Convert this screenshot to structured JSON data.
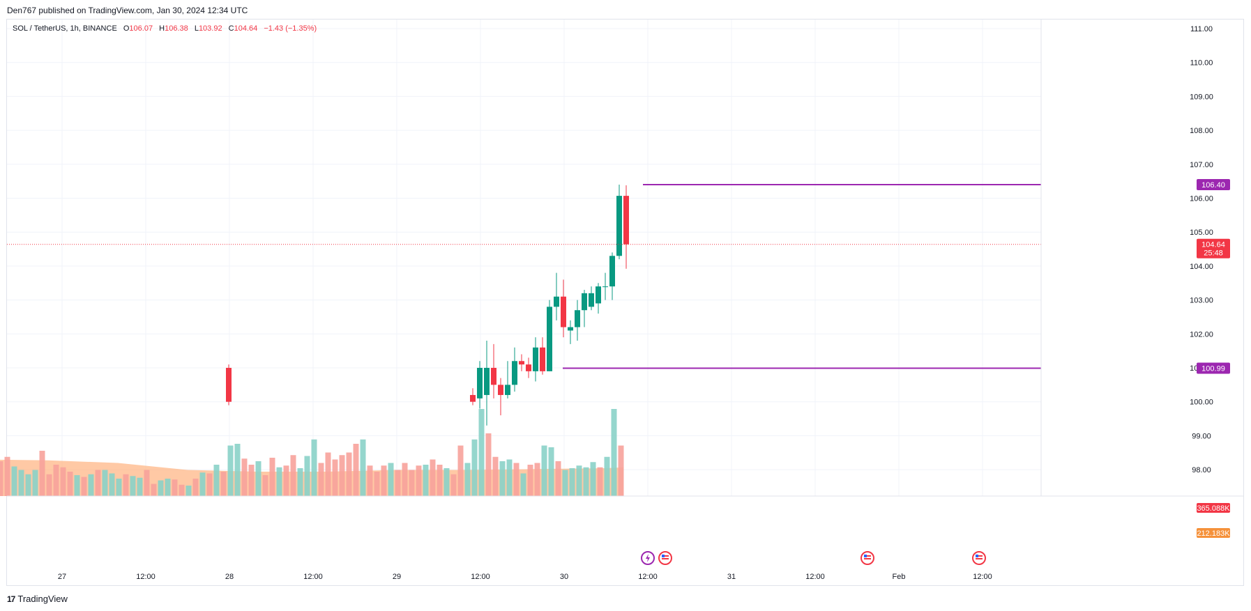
{
  "header": {
    "published": "Den767 published on TradingView.com, Jan 30, 2024 12:34 UTC"
  },
  "legend": {
    "symbol": "SOL / TetherUS, 1h, BINANCE",
    "open_label": "O",
    "open": "106.07",
    "high_label": "H",
    "high": "106.38",
    "low_label": "L",
    "low": "103.92",
    "close_label": "C",
    "close": "104.64",
    "change": "−1.43 (−1.35%)"
  },
  "footer": {
    "brand": "TradingView",
    "logo_icon": "tradingview-logo-icon"
  },
  "colors": {
    "up": "#089981",
    "down": "#f23645",
    "level": "#9c27b0",
    "vol_ma": "#ffb787",
    "vol_up": "#8ad2c8",
    "vol_down": "#f7a29b",
    "price_line": "#f23645"
  },
  "chart_data": {
    "type": "candlestick",
    "y_ticks": [
      "111.00",
      "110.00",
      "109.00",
      "108.00",
      "107.00",
      "106.00",
      "105.00",
      "104.00",
      "103.00",
      "102.00",
      "101.00",
      "100.00",
      "99.00",
      "98.00"
    ],
    "y_tick_values": [
      111,
      110,
      109,
      108,
      107,
      106,
      105,
      104,
      103,
      102,
      101,
      100,
      99,
      98
    ],
    "ylim": [
      97.7,
      111.4
    ],
    "x_ticks": [
      "27",
      "12:00",
      "28",
      "12:00",
      "29",
      "12:00",
      "30",
      "12:00",
      "31",
      "12:00",
      "Feb",
      "12:00"
    ],
    "x_tick_hours": [
      12,
      24,
      36,
      48,
      60,
      72,
      84,
      96,
      108,
      120,
      132,
      144
    ],
    "levels": [
      {
        "label": "106.40",
        "value": 106.4,
        "from_hour": 95.5
      },
      {
        "label": "100.99",
        "value": 100.99,
        "from_hour": 84.0
      }
    ],
    "last_price": {
      "label": "104.64",
      "countdown": "25:48",
      "value": 104.64
    },
    "volume_labels": [
      {
        "label": "365.088K",
        "color": "#f23645"
      },
      {
        "label": "212.183K",
        "color": "#f5913a"
      }
    ],
    "candles": [
      {
        "h": 70.9,
        "o": 100.2,
        "c": 100.0,
        "hi": 100.4,
        "lo": 99.9
      },
      {
        "h": 71.9,
        "o": 100.1,
        "c": 101.0,
        "hi": 101.2,
        "lo": 99.8
      },
      {
        "h": 72.9,
        "o": 100.2,
        "c": 101.0,
        "hi": 101.8,
        "lo": 99.3
      },
      {
        "h": 73.9,
        "o": 101.0,
        "c": 100.5,
        "hi": 101.7,
        "lo": 100.1
      },
      {
        "h": 74.9,
        "o": 100.5,
        "c": 100.2,
        "hi": 100.7,
        "lo": 99.6
      },
      {
        "h": 75.9,
        "o": 100.2,
        "c": 100.5,
        "hi": 101.2,
        "lo": 100.1
      },
      {
        "h": 76.9,
        "o": 100.5,
        "c": 101.2,
        "hi": 101.6,
        "lo": 100.3
      },
      {
        "h": 77.9,
        "o": 101.2,
        "c": 101.1,
        "hi": 101.4,
        "lo": 100.9
      },
      {
        "h": 78.9,
        "o": 101.1,
        "c": 100.9,
        "hi": 101.3,
        "lo": 100.7
      },
      {
        "h": 79.9,
        "o": 100.9,
        "c": 101.6,
        "hi": 101.9,
        "lo": 100.6
      },
      {
        "h": 80.9,
        "o": 101.6,
        "c": 100.9,
        "hi": 101.9,
        "lo": 100.8
      },
      {
        "h": 81.9,
        "o": 100.9,
        "c": 102.8,
        "hi": 103.0,
        "lo": 100.9
      },
      {
        "h": 82.9,
        "o": 102.8,
        "c": 103.1,
        "hi": 103.8,
        "lo": 102.4
      },
      {
        "h": 83.9,
        "o": 103.1,
        "c": 102.2,
        "hi": 103.6,
        "lo": 101.9
      },
      {
        "h": 84.9,
        "o": 102.1,
        "c": 102.2,
        "hi": 102.4,
        "lo": 101.7
      },
      {
        "h": 85.9,
        "o": 102.2,
        "c": 102.7,
        "hi": 103.0,
        "lo": 101.8
      },
      {
        "h": 86.9,
        "o": 102.7,
        "c": 103.2,
        "hi": 103.3,
        "lo": 102.2
      },
      {
        "h": 87.9,
        "o": 102.8,
        "c": 103.2,
        "hi": 103.4,
        "lo": 102.7
      },
      {
        "h": 88.9,
        "o": 102.9,
        "c": 103.4,
        "hi": 103.5,
        "lo": 102.6
      },
      {
        "h": 89.9,
        "o": 103.4,
        "c": 103.4,
        "hi": 103.8,
        "lo": 103.0
      },
      {
        "h": 90.9,
        "o": 103.4,
        "c": 104.3,
        "hi": 104.4,
        "lo": 103.0
      },
      {
        "h": 91.9,
        "o": 104.3,
        "c": 106.07,
        "hi": 106.4,
        "lo": 104.2
      },
      {
        "h": 92.9,
        "o": 106.07,
        "c": 104.64,
        "hi": 106.38,
        "lo": 103.92
      }
    ],
    "early_candles": [
      {
        "h": 35.9,
        "o": 101.0,
        "c": 100.0,
        "hi": 101.1,
        "lo": 99.9
      }
    ],
    "volumes": [
      {
        "h": 0.2,
        "v": 0.55,
        "d": 0
      },
      {
        "h": 1.2,
        "v": 0.4,
        "d": 1
      },
      {
        "h": 2.2,
        "v": 0.36,
        "d": 1
      },
      {
        "h": 3.2,
        "v": 0.4,
        "d": 1
      },
      {
        "h": 4.2,
        "v": 0.45,
        "d": 1
      },
      {
        "h": 5.2,
        "v": 0.34,
        "d": 0
      },
      {
        "h": 6.2,
        "v": 0.3,
        "d": 0
      },
      {
        "h": 7.2,
        "v": 0.25,
        "d": 0
      },
      {
        "h": 8.2,
        "v": 0.3,
        "d": 0
      },
      {
        "h": 9.2,
        "v": 0.52,
        "d": 1
      },
      {
        "h": 10.2,
        "v": 0.25,
        "d": 1
      },
      {
        "h": 11.2,
        "v": 0.36,
        "d": 1
      },
      {
        "h": 12.2,
        "v": 0.33,
        "d": 1
      },
      {
        "h": 13.2,
        "v": 0.28,
        "d": 1
      },
      {
        "h": 14.2,
        "v": 0.24,
        "d": 0
      },
      {
        "h": 15.2,
        "v": 0.22,
        "d": 1
      },
      {
        "h": 16.2,
        "v": 0.25,
        "d": 0
      },
      {
        "h": 17.2,
        "v": 0.3,
        "d": 1
      },
      {
        "h": 18.2,
        "v": 0.3,
        "d": 0
      },
      {
        "h": 19.2,
        "v": 0.26,
        "d": 0
      },
      {
        "h": 20.2,
        "v": 0.2,
        "d": 0
      },
      {
        "h": 21.2,
        "v": 0.25,
        "d": 1
      },
      {
        "h": 22.2,
        "v": 0.23,
        "d": 0
      },
      {
        "h": 23.2,
        "v": 0.21,
        "d": 0
      },
      {
        "h": 24.2,
        "v": 0.3,
        "d": 1
      },
      {
        "h": 25.2,
        "v": 0.14,
        "d": 1
      },
      {
        "h": 26.2,
        "v": 0.18,
        "d": 0
      },
      {
        "h": 27.2,
        "v": 0.2,
        "d": 0
      },
      {
        "h": 28.2,
        "v": 0.19,
        "d": 1
      },
      {
        "h": 29.2,
        "v": 0.13,
        "d": 1
      },
      {
        "h": 30.2,
        "v": 0.12,
        "d": 0
      },
      {
        "h": 31.2,
        "v": 0.2,
        "d": 1
      },
      {
        "h": 32.2,
        "v": 0.27,
        "d": 0
      },
      {
        "h": 33.2,
        "v": 0.26,
        "d": 1
      },
      {
        "h": 34.2,
        "v": 0.36,
        "d": 0
      },
      {
        "h": 35.2,
        "v": 0.28,
        "d": 1
      },
      {
        "h": 36.2,
        "v": 0.58,
        "d": 0
      },
      {
        "h": 37.2,
        "v": 0.6,
        "d": 0
      },
      {
        "h": 38.2,
        "v": 0.43,
        "d": 1
      },
      {
        "h": 39.2,
        "v": 0.36,
        "d": 1
      },
      {
        "h": 40.2,
        "v": 0.4,
        "d": 0
      },
      {
        "h": 41.2,
        "v": 0.24,
        "d": 1
      },
      {
        "h": 42.2,
        "v": 0.44,
        "d": 1
      },
      {
        "h": 43.2,
        "v": 0.33,
        "d": 0
      },
      {
        "h": 44.2,
        "v": 0.35,
        "d": 1
      },
      {
        "h": 45.2,
        "v": 0.47,
        "d": 1
      },
      {
        "h": 46.2,
        "v": 0.32,
        "d": 0
      },
      {
        "h": 47.2,
        "v": 0.46,
        "d": 0
      },
      {
        "h": 48.2,
        "v": 0.65,
        "d": 0
      },
      {
        "h": 49.2,
        "v": 0.38,
        "d": 1
      },
      {
        "h": 50.2,
        "v": 0.5,
        "d": 1
      },
      {
        "h": 51.2,
        "v": 0.42,
        "d": 1
      },
      {
        "h": 52.2,
        "v": 0.47,
        "d": 1
      },
      {
        "h": 53.2,
        "v": 0.5,
        "d": 1
      },
      {
        "h": 54.2,
        "v": 0.6,
        "d": 1
      },
      {
        "h": 55.2,
        "v": 0.65,
        "d": 0
      },
      {
        "h": 56.2,
        "v": 0.35,
        "d": 1
      },
      {
        "h": 57.2,
        "v": 0.28,
        "d": 1
      },
      {
        "h": 58.2,
        "v": 0.35,
        "d": 1
      },
      {
        "h": 59.2,
        "v": 0.38,
        "d": 0
      },
      {
        "h": 60.2,
        "v": 0.3,
        "d": 1
      },
      {
        "h": 61.2,
        "v": 0.38,
        "d": 1
      },
      {
        "h": 62.2,
        "v": 0.3,
        "d": 1
      },
      {
        "h": 63.2,
        "v": 0.35,
        "d": 1
      },
      {
        "h": 64.2,
        "v": 0.36,
        "d": 0
      },
      {
        "h": 65.2,
        "v": 0.42,
        "d": 1
      },
      {
        "h": 66.2,
        "v": 0.36,
        "d": 1
      },
      {
        "h": 67.2,
        "v": 0.32,
        "d": 0
      },
      {
        "h": 68.2,
        "v": 0.25,
        "d": 1
      },
      {
        "h": 69.2,
        "v": 0.58,
        "d": 1
      },
      {
        "h": 70.2,
        "v": 0.38,
        "d": 0
      },
      {
        "h": 71.2,
        "v": 0.65,
        "d": 0
      },
      {
        "h": 72.2,
        "v": 1.0,
        "d": 0
      },
      {
        "h": 73.2,
        "v": 0.72,
        "d": 1
      },
      {
        "h": 74.2,
        "v": 0.45,
        "d": 1
      },
      {
        "h": 75.2,
        "v": 0.4,
        "d": 0
      },
      {
        "h": 76.2,
        "v": 0.42,
        "d": 0
      },
      {
        "h": 77.2,
        "v": 0.38,
        "d": 1
      },
      {
        "h": 78.2,
        "v": 0.26,
        "d": 0
      },
      {
        "h": 79.2,
        "v": 0.36,
        "d": 1
      },
      {
        "h": 80.2,
        "v": 0.38,
        "d": 1
      },
      {
        "h": 81.2,
        "v": 0.58,
        "d": 0
      },
      {
        "h": 82.2,
        "v": 0.56,
        "d": 0
      },
      {
        "h": 83.2,
        "v": 0.4,
        "d": 1
      },
      {
        "h": 84.2,
        "v": 0.3,
        "d": 0
      },
      {
        "h": 85.2,
        "v": 0.32,
        "d": 0
      },
      {
        "h": 86.2,
        "v": 0.35,
        "d": 0
      },
      {
        "h": 87.2,
        "v": 0.33,
        "d": 0
      },
      {
        "h": 88.2,
        "v": 0.39,
        "d": 0
      },
      {
        "h": 89.2,
        "v": 0.33,
        "d": 1
      },
      {
        "h": 90.2,
        "v": 0.45,
        "d": 0
      },
      {
        "h": 91.2,
        "v": 1.0,
        "d": 0
      },
      {
        "h": 92.2,
        "v": 0.58,
        "d": 1
      }
    ],
    "event_icons": [
      {
        "hour": 96.0,
        "name": "lightning-event-icon"
      },
      {
        "hour": 98.5,
        "name": "us-flag-event-icon"
      },
      {
        "hour": 127.5,
        "name": "us-flag-event-icon"
      },
      {
        "hour": 143.5,
        "name": "us-flag-event-icon"
      }
    ]
  }
}
